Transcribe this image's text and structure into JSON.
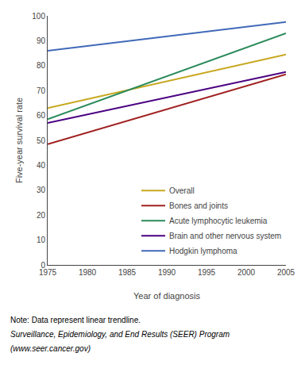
{
  "chart_data": {
    "type": "line",
    "xlabel": "Year of diagnosis",
    "ylabel": "Five-year survival rate",
    "xlim": [
      1975,
      2005
    ],
    "ylim": [
      0,
      100
    ],
    "xticks": [
      1975,
      1980,
      1985,
      1990,
      1995,
      2000,
      2005
    ],
    "yticks": [
      0,
      10,
      20,
      30,
      40,
      50,
      60,
      70,
      80,
      90,
      100
    ],
    "x": [
      1975,
      2005
    ],
    "series": [
      {
        "name": "Overall",
        "color": "#c8a820",
        "values": [
          63.0,
          84.5
        ]
      },
      {
        "name": "Bones and joints",
        "color": "#a02020",
        "values": [
          48.5,
          76.5
        ]
      },
      {
        "name": "Acute lymphocytic leukemia",
        "color": "#2a8a5a",
        "values": [
          58.5,
          93.0
        ]
      },
      {
        "name": "Brain and other nervous system",
        "color": "#4b0082",
        "values": [
          57.0,
          77.5
        ]
      },
      {
        "name": "Hodgkin lymphoma",
        "color": "#4169b8",
        "values": [
          86.0,
          97.5
        ]
      }
    ],
    "annotations": [
      "Note: Data represent linear trendline.",
      "Surveillance, Epidemiology, and End Results (SEER) Program",
      "(www.seer.cancer.gov)"
    ],
    "legend": "lower right",
    "grid": false
  }
}
